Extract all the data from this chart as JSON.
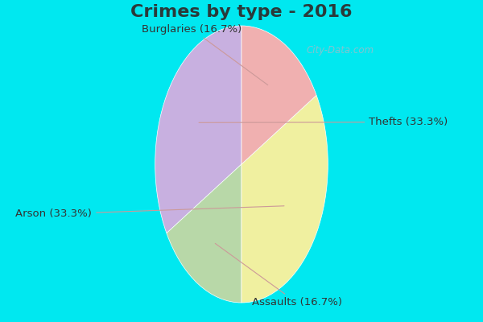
{
  "title": "Crimes by type - 2016",
  "slices": [
    {
      "label": "Thefts (33.3%)",
      "value": 33.3,
      "color": "#c8b0e0"
    },
    {
      "label": "Assaults (16.7%)",
      "value": 16.7,
      "color": "#b8d8a8"
    },
    {
      "label": "Arson (33.3%)",
      "value": 33.3,
      "color": "#f0f0a0"
    },
    {
      "label": "Burglaries (16.7%)",
      "value": 16.7,
      "color": "#f0b0b0"
    }
  ],
  "bg_cyan": "#00e8f0",
  "bg_inner": "#c8e8e0",
  "title_fontsize": 16,
  "label_fontsize": 9.5,
  "watermark": "City-Data.com",
  "startangle": 90,
  "title_color": "#2a3a3a"
}
